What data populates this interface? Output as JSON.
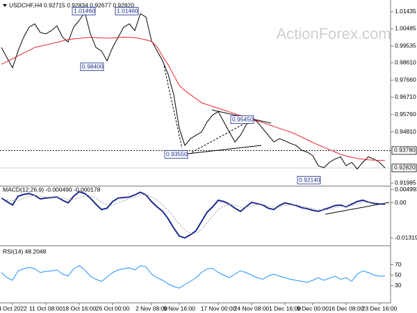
{
  "chart_data": [
    {
      "type": "line",
      "title": "USDCHF,H4  0.92715 0.92834 0.92677 0.92820",
      "watermark": "ActionForex.com",
      "ylim": [
        0.9184,
        1.0196
      ],
      "yticks": [
        1.01435,
        1.00485,
        0.99535,
        {
          "value": 0.9861,
          "label": "0.98610"
        },
        {
          "value": 0.9766,
          "label": "0.97660"
        },
        {
          "value": 0.9671,
          "label": "0.96710"
        },
        {
          "value": 0.9576,
          "label": "0.95760"
        },
        {
          "value": 0.9481,
          "label": "0.94810"
        },
        0.91985
      ],
      "levels": [
        {
          "value": 0.9378,
          "label": "0.93780"
        },
        {
          "value": 0.9282,
          "label": "0.92820"
        }
      ],
      "annotations": [
        "1.01460",
        "1.01460",
        "0.98400",
        "0.95450",
        "0.93550",
        "0.92140"
      ],
      "series": [
        {
          "color": "#000000",
          "values": [
            0.9946,
            0.989,
            0.9834,
            0.9927,
            1.0002,
            1.0058,
            1.0076,
            1.0028,
            1.0021,
            1.0039,
            1.0065,
            1.0002,
            0.9976,
            1.0058,
            1.0095,
            1.014,
            1.0021,
            0.9946,
            0.9927,
            0.9872,
            0.9946,
            1.0002,
            1.0058,
            1.0076,
            1.0039,
            1.0132,
            1.0114,
            0.9983,
            0.9927,
            0.9872,
            0.9797,
            0.9685,
            0.9499,
            0.9406,
            0.9443,
            0.9462,
            0.948,
            0.9536,
            0.9574,
            0.9592,
            0.9536,
            0.948,
            0.9425,
            0.9462,
            0.9518,
            0.9555,
            0.9536,
            0.9499,
            0.9462,
            0.9425,
            0.9443,
            0.9432,
            0.9417,
            0.9406,
            0.938,
            0.9369,
            0.935,
            0.9294,
            0.9283,
            0.9313,
            0.9331,
            0.9343,
            0.9294,
            0.9313,
            0.9276,
            0.9313,
            0.9343,
            0.9331,
            0.9313,
            0.9282
          ]
        },
        {
          "color": "#e8232a",
          "values": [
            0.9853,
            0.9868,
            0.9884,
            0.9899,
            0.9915,
            0.993,
            0.9946,
            0.9953,
            0.996,
            0.9967,
            0.9974,
            0.9982,
            0.999,
            0.9993,
            0.9996,
            0.9999,
            1.0002,
            1.0,
            0.9998,
            0.9997,
            0.9998,
            1.0001,
            1.0003,
            1.0002,
            1.0,
            0.9995,
            0.9988,
            0.9979,
            0.995,
            0.9897,
            0.985,
            0.9793,
            0.9737,
            0.9708,
            0.9686,
            0.9664,
            0.9641,
            0.9631,
            0.9621,
            0.9611,
            0.9601,
            0.9591,
            0.9581,
            0.9571,
            0.9562,
            0.9552,
            0.9542,
            0.9532,
            0.9521,
            0.9511,
            0.95,
            0.949,
            0.948,
            0.9467,
            0.9452,
            0.9437,
            0.9422,
            0.9409,
            0.9396,
            0.9383,
            0.937,
            0.9357,
            0.9348,
            0.9341,
            0.9334,
            0.933,
            0.9327,
            0.9325,
            0.9324,
            0.9323
          ]
        }
      ]
    },
    {
      "type": "line",
      "title": "MACD(12,26,9) -0.000490 -0.000178",
      "ylim": [
        -0.0158,
        0.0062
      ],
      "yticks": [
        0.004993,
        {
          "value": 0,
          "label": "0.00"
        },
        -0.013193
      ],
      "series": [
        {
          "color": "#1a2a8c",
          "width": 2,
          "values": [
            0.0018,
            0.0005,
            -0.0008,
            0.0025,
            0.0032,
            0.0035,
            0.0028,
            0.0015,
            0.0018,
            0.002,
            0.0022,
            0.001,
            0.0,
            0.0025,
            0.0042,
            0.0035,
            0.0018,
            -0.0005,
            -0.0025,
            -0.002,
            0.0005,
            0.0018,
            0.002,
            0.0022,
            0.003,
            0.004,
            0.003,
            0.0005,
            -0.0015,
            -0.0032,
            -0.006,
            -0.0095,
            -0.0125,
            -0.0132,
            -0.012,
            -0.0105,
            -0.007,
            -0.0035,
            -0.0015,
            0.001,
            0.0005,
            -0.0005,
            -0.002,
            -0.0032,
            -0.0015,
            0.0002,
            -0.0003,
            -0.0008,
            -0.002,
            -0.0025,
            -0.001,
            0.0,
            -0.0005,
            -0.001,
            -0.0018,
            -0.0022,
            -0.0028,
            -0.0032,
            -0.0025,
            -0.0018,
            -0.001,
            -0.0008,
            -0.0015,
            -0.0005,
            0.0005,
            0.001,
            0.0003,
            -0.0002,
            -0.0004,
            -0.00049
          ]
        },
        {
          "color": "#a0a0a0",
          "width": 1,
          "dash": true,
          "values": [
            0.0015,
            0.0012,
            0.0008,
            0.0009,
            0.0016,
            0.0024,
            0.0028,
            0.0026,
            0.0022,
            0.002,
            0.002,
            0.0018,
            0.0013,
            0.0013,
            0.002,
            0.0028,
            0.0028,
            0.0018,
            0.0003,
            -0.0008,
            -0.0008,
            0.0,
            0.0008,
            0.0015,
            0.0021,
            0.0028,
            0.0032,
            0.0024,
            0.0009,
            -0.0008,
            -0.0028,
            -0.0052,
            -0.008,
            -0.0103,
            -0.0115,
            -0.0115,
            -0.01,
            -0.0075,
            -0.005,
            -0.0026,
            -0.0012,
            -0.0005,
            -0.0008,
            -0.0016,
            -0.0018,
            -0.0012,
            -0.0006,
            -0.0006,
            -0.0011,
            -0.0016,
            -0.0016,
            -0.001,
            -0.0007,
            -0.0008,
            -0.0012,
            -0.0016,
            -0.0021,
            -0.0026,
            -0.0027,
            -0.0024,
            -0.0018,
            -0.0013,
            -0.0013,
            -0.001,
            -0.0004,
            0.0002,
            0.0003,
            0.0001,
            -0.0001,
            -0.000178
          ]
        }
      ]
    },
    {
      "type": "line",
      "title": "RSI(14) 48.2048",
      "ylim": [
        0,
        100
      ],
      "yticks": [
        70,
        50,
        30
      ],
      "categories": [
        null,
        null,
        "4 Oct 2022",
        null,
        null,
        null,
        null,
        null,
        "11 Oct 08:00",
        null,
        null,
        null,
        null,
        null,
        "18 Oct 16:00",
        null,
        null,
        null,
        null,
        null,
        "26 Oct 00:00",
        null,
        null,
        null,
        null,
        null,
        null,
        "2 Nov 08:00",
        null,
        null,
        null,
        null,
        "9 Nov 16:00",
        null,
        null,
        null,
        null,
        null,
        null,
        "17 Nov 00:00",
        null,
        null,
        null,
        null,
        null,
        "24 Nov 08:00",
        null,
        null,
        null,
        null,
        null,
        "1 Dec 16:00",
        null,
        null,
        null,
        null,
        "9 Dec 00:00",
        null,
        null,
        null,
        null,
        null,
        "16 Dec 08:00",
        null,
        null,
        null,
        null,
        null,
        "23 Dec 16:00",
        null
      ],
      "series": [
        {
          "color": "#1e90ff",
          "values": [
            55,
            45,
            40,
            58,
            62,
            65,
            62,
            55,
            57,
            58,
            60,
            52,
            48,
            62,
            68,
            60,
            48,
            42,
            38,
            46,
            55,
            60,
            62,
            64,
            60,
            68,
            66,
            52,
            45,
            40,
            33,
            28,
            25,
            32,
            38,
            45,
            55,
            62,
            63,
            55,
            50,
            45,
            52,
            58,
            55,
            50,
            45,
            42,
            48,
            52,
            48,
            45,
            42,
            40,
            38,
            36,
            40,
            45,
            40,
            44,
            48,
            42,
            45,
            38,
            52,
            58,
            55,
            50,
            48,
            48.2048
          ]
        }
      ]
    }
  ]
}
